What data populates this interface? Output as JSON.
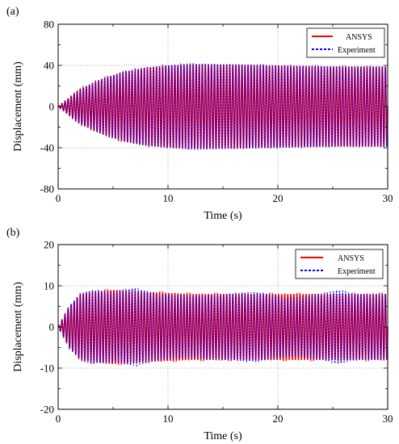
{
  "chart_data": [
    {
      "panel_label": "(a)",
      "type": "line",
      "xlabel": "Time (s)",
      "ylabel": "Displacement (mm)",
      "xlim": [
        0,
        30
      ],
      "ylim": [
        -80,
        80
      ],
      "x_ticks": [
        0,
        10,
        20,
        30
      ],
      "y_ticks": [
        -80,
        -40,
        0,
        40,
        80
      ],
      "grid": true,
      "legend_position": "top-right",
      "series": [
        {
          "name": "ANSYS",
          "color": "#ff0000",
          "style": "solid",
          "approx_frequency_hz": 3.6,
          "envelope": {
            "t": [
              0,
              2,
              4,
              6,
              8,
              10,
              12,
              16,
              20,
              25,
              30
            ],
            "amp": [
              0,
              17,
              27,
              34,
              38,
              40,
              41,
              41,
              40,
              39,
              39
            ]
          }
        },
        {
          "name": "Experiment",
          "color": "#0000ff",
          "style": "dashed",
          "approx_frequency_hz": 3.6,
          "envelope": {
            "t": [
              0,
              2,
              4,
              6,
              8,
              10,
              12,
              16,
              20,
              25,
              30
            ],
            "amp": [
              0,
              17,
              27,
              34,
              38,
              40,
              42,
              41,
              40,
              39,
              39
            ]
          }
        }
      ]
    },
    {
      "panel_label": "(b)",
      "type": "line",
      "xlabel": "Time (s)",
      "ylabel": "Displacement (mm)",
      "xlim": [
        0,
        30
      ],
      "ylim": [
        -20,
        20
      ],
      "x_ticks": [
        0,
        10,
        20,
        30
      ],
      "y_ticks": [
        -20,
        -10,
        0,
        10,
        20
      ],
      "grid": true,
      "legend_position": "top-right",
      "series": [
        {
          "name": "ANSYS",
          "color": "#ff0000",
          "style": "solid",
          "approx_frequency_hz": 3.6,
          "envelope": {
            "t": [
              0,
              1,
              2,
              3,
              5,
              8,
              12,
              16,
              20,
              24,
              28,
              30
            ],
            "amp": [
              0,
              5,
              8,
              8.5,
              9,
              8.5,
              8,
              8,
              8,
              8,
              8,
              8
            ]
          }
        },
        {
          "name": "Experiment",
          "color": "#0000ff",
          "style": "dashed",
          "approx_frequency_hz": 3.6,
          "envelope": {
            "t": [
              0,
              1,
              2,
              3,
              5,
              7,
              9,
              12,
              15,
              18,
              21,
              24,
              25.5,
              27,
              30
            ],
            "amp": [
              0,
              5,
              8,
              9,
              8.5,
              9.5,
              8,
              7.5,
              8,
              8.5,
              7,
              8,
              9,
              8,
              8
            ]
          }
        }
      ]
    }
  ]
}
